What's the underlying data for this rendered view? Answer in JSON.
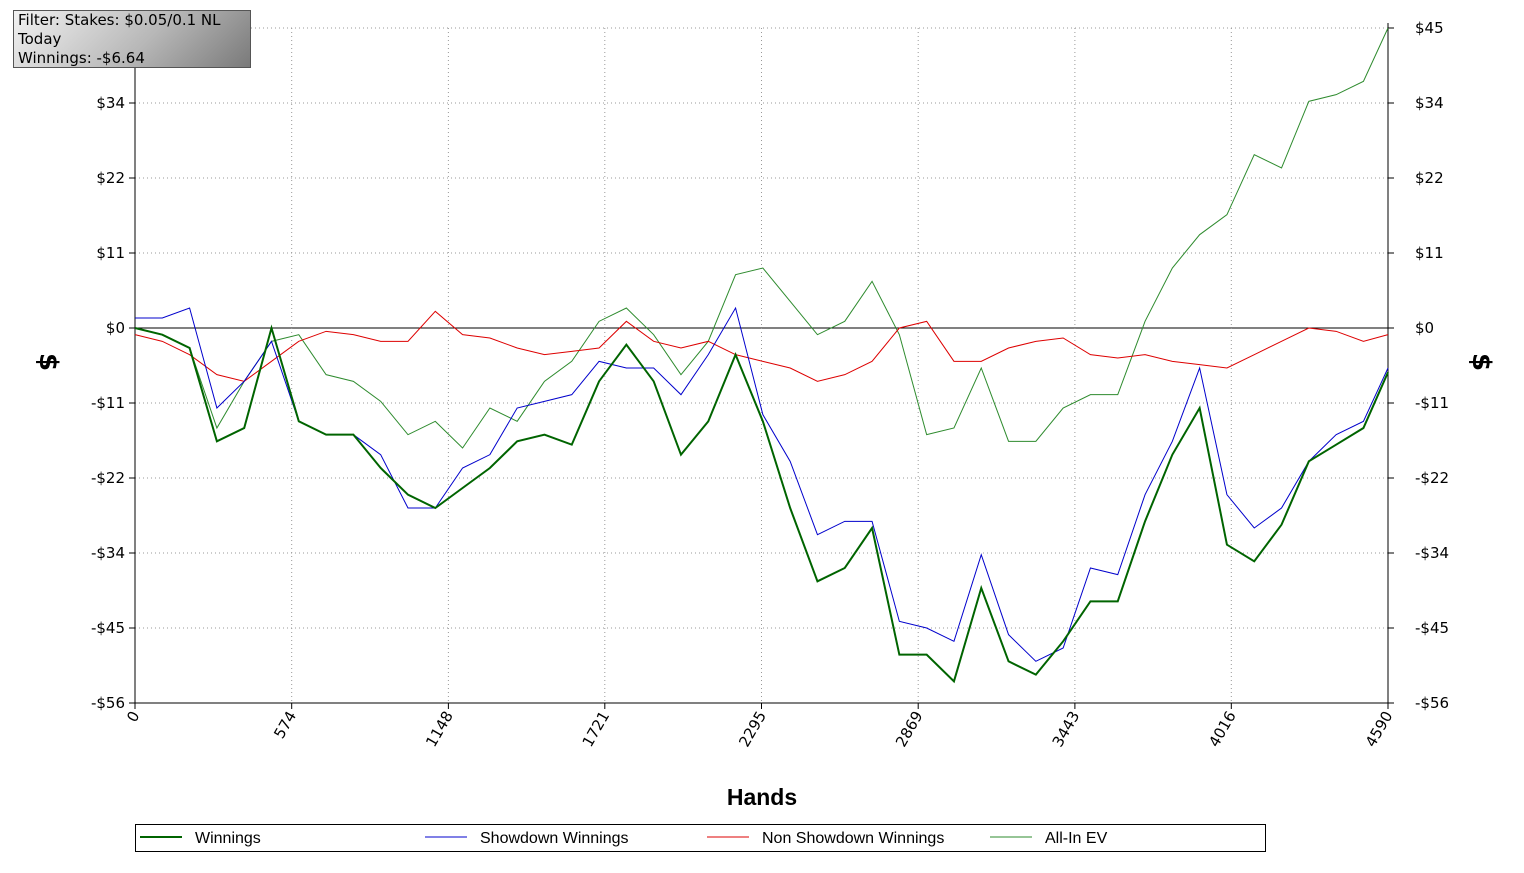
{
  "chart_data": {
    "type": "line",
    "info_box": [
      "Filter: Stakes: $0.05/0.1 NL",
      "Today",
      "Winnings: -$6.64"
    ],
    "x_label": "Hands",
    "y_label": "$",
    "x": [
      0,
      100,
      200,
      300,
      400,
      500,
      600,
      700,
      800,
      900,
      1000,
      1100,
      1200,
      1300,
      1400,
      1500,
      1600,
      1700,
      1800,
      1900,
      2000,
      2100,
      2200,
      2300,
      2400,
      2500,
      2600,
      2700,
      2800,
      2900,
      3000,
      3100,
      3200,
      3300,
      3400,
      3500,
      3600,
      3700,
      3800,
      3900,
      4000,
      4100,
      4200,
      4300,
      4400,
      4500,
      4590
    ],
    "xlim": [
      0,
      4590
    ],
    "xticks": [
      0,
      574,
      1148,
      1721,
      2295,
      2869,
      3443,
      4016,
      4590
    ],
    "ylim": [
      -56.25,
      45
    ],
    "yticks": [
      {
        "value": -56.25,
        "label": "-$56"
      },
      {
        "value": -45,
        "label": "-$45"
      },
      {
        "value": -33.75,
        "label": "-$34"
      },
      {
        "value": -22.5,
        "label": "-$22"
      },
      {
        "value": -11.25,
        "label": "-$11"
      },
      {
        "value": 0,
        "label": "$0"
      },
      {
        "value": 11.25,
        "label": "$11"
      },
      {
        "value": 22.5,
        "label": "$22"
      },
      {
        "value": 33.75,
        "label": "$34"
      },
      {
        "value": 45,
        "label": "$45"
      }
    ],
    "grid": true,
    "legend": "bottom",
    "series": [
      {
        "name": "Winnings",
        "color": "#006400",
        "width": 2,
        "values": [
          0,
          -1,
          -3,
          -17,
          -15,
          0,
          -14,
          -16,
          -16,
          -21,
          -25,
          -27,
          -24,
          -21,
          -17,
          -16,
          -17.5,
          -8,
          -2.5,
          -8,
          -19,
          -14,
          -4,
          -14,
          -27,
          -38,
          -36,
          -30,
          -49,
          -49,
          -53,
          -39,
          -50,
          -52,
          -47,
          -41,
          -41,
          -29,
          -19,
          -12,
          -32.5,
          -35,
          -29.5,
          -20,
          -17.5,
          -15,
          -6.64
        ]
      },
      {
        "name": "Showdown Winnings",
        "color": "#0000cc",
        "width": 1,
        "values": [
          1.5,
          1.5,
          3,
          -12,
          -8,
          -2,
          -14,
          -16,
          -16,
          -19,
          -27,
          -27,
          -21,
          -19,
          -12,
          -11,
          -10,
          -5,
          -6,
          -6,
          -10,
          -4,
          3,
          -13,
          -20,
          -31,
          -29,
          -29,
          -44,
          -45,
          -47,
          -34,
          -46,
          -50,
          -48,
          -36,
          -37,
          -25,
          -17,
          -6,
          -25,
          -30,
          -27,
          -20,
          -16,
          -14,
          -6
        ]
      },
      {
        "name": "Non Showdown Winnings",
        "color": "#dd0000",
        "width": 1,
        "values": [
          -1,
          -2,
          -4,
          -7,
          -8,
          -5,
          -2,
          -0.5,
          -1,
          -2,
          -2,
          2.5,
          -1,
          -1.5,
          -3,
          -4,
          -3.5,
          -3,
          1,
          -2,
          -3,
          -2,
          -4,
          -5,
          -6,
          -8,
          -7,
          -5,
          0,
          1,
          -5,
          -5,
          -3,
          -2,
          -1.5,
          -4,
          -4.5,
          -4,
          -5,
          -5.5,
          -6,
          -4,
          -2,
          0,
          -0.5,
          -2,
          -1
        ]
      },
      {
        "name": "All-In EV",
        "color": "#2e8b2e",
        "width": 1,
        "values": [
          0,
          -1,
          -3,
          -15,
          -8,
          -2,
          -1,
          -7,
          -8,
          -11,
          -16,
          -14,
          -18,
          -12,
          -14,
          -8,
          -5,
          1,
          3,
          -1,
          -7,
          -2,
          8,
          9,
          4,
          -1,
          1,
          7,
          -1,
          -16,
          -15,
          -6,
          -17,
          -17,
          -12,
          -10,
          -10,
          1,
          9,
          14,
          17,
          26,
          24,
          34,
          35,
          37,
          45
        ]
      }
    ]
  }
}
